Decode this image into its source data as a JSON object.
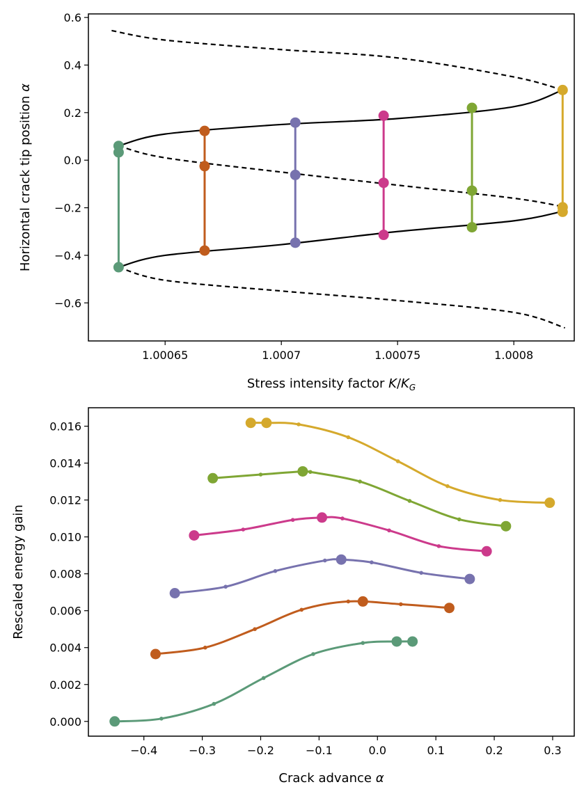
{
  "chart_data": [
    {
      "type": "line",
      "xlabel": "Stress intensity factor",
      "xlabel_math": "K/K_G",
      "ylabel": "Horizontal crack tip position",
      "ylabel_math": "α",
      "xlim": [
        1.000617,
        1.000826
      ],
      "ylim": [
        -0.76,
        0.615
      ],
      "xticks": [
        1.00065,
        1.0007,
        1.00075,
        1.0008
      ],
      "xtick_labels": [
        "1.00065",
        "1.0007",
        "1.00075",
        "1.0008"
      ],
      "yticks": [
        -0.6,
        -0.4,
        -0.2,
        0.0,
        0.2,
        0.4,
        0.6
      ],
      "ytick_labels": [
        "−0.6",
        "−0.4",
        "−0.2",
        "0.0",
        "0.2",
        "0.4",
        "0.6"
      ],
      "curves": [
        {
          "style": "dashed",
          "points": [
            [
              1.000627,
              0.545
            ],
            [
              1.00065,
              0.505
            ],
            [
              1.0007,
              0.465
            ],
            [
              1.00075,
              0.43
            ],
            [
              1.0008,
              0.35
            ],
            [
              1.000821,
              0.295
            ]
          ]
        },
        {
          "style": "solid",
          "points": [
            [
              1.000821,
              0.295
            ],
            [
              1.0008,
              0.225
            ],
            [
              1.00075,
              0.175
            ],
            [
              1.0007,
              0.15
            ],
            [
              1.00065,
              0.11
            ],
            [
              1.00063,
              0.06
            ]
          ]
        },
        {
          "style": "dashed",
          "points": [
            [
              1.00063,
              0.06
            ],
            [
              1.00065,
              0.01
            ],
            [
              1.0007,
              -0.05
            ],
            [
              1.00075,
              -0.105
            ],
            [
              1.0008,
              -0.16
            ],
            [
              1.000821,
              -0.195
            ]
          ]
        },
        {
          "style": "solid",
          "points": [
            [
              1.000821,
              -0.215
            ],
            [
              1.0008,
              -0.255
            ],
            [
              1.00075,
              -0.3
            ],
            [
              1.0007,
              -0.355
            ],
            [
              1.00065,
              -0.4
            ],
            [
              1.00063,
              -0.45
            ]
          ]
        },
        {
          "style": "dashed",
          "points": [
            [
              1.00063,
              -0.45
            ],
            [
              1.00065,
              -0.505
            ],
            [
              1.0007,
              -0.55
            ],
            [
              1.00075,
              -0.59
            ],
            [
              1.0008,
              -0.64
            ],
            [
              1.000822,
              -0.705
            ]
          ]
        }
      ],
      "series": [
        {
          "color": "#5b9a78",
          "x": 1.00063,
          "values": [
            0.06,
            0.033,
            -0.45
          ]
        },
        {
          "color": "#c05c1d",
          "x": 1.000667,
          "values": [
            0.123,
            -0.025,
            -0.38
          ]
        },
        {
          "color": "#7772ae",
          "x": 1.000706,
          "values": [
            0.158,
            -0.062,
            -0.347
          ]
        },
        {
          "color": "#cc3a8b",
          "x": 1.000744,
          "values": [
            0.187,
            -0.095,
            -0.314
          ]
        },
        {
          "color": "#7fa634",
          "x": 1.000782,
          "values": [
            0.22,
            -0.128,
            -0.282
          ]
        },
        {
          "color": "#d5a92c",
          "x": 1.000821,
          "values": [
            0.295,
            -0.198,
            -0.217
          ]
        }
      ]
    },
    {
      "type": "line",
      "xlabel": "Crack advance",
      "xlabel_math": "α",
      "ylabel": "Rescaled energy gain",
      "xlim": [
        -0.495,
        0.337
      ],
      "ylim": [
        -0.0008,
        0.017
      ],
      "xticks": [
        -0.4,
        -0.3,
        -0.2,
        -0.1,
        0.0,
        0.1,
        0.2,
        0.3
      ],
      "xtick_labels": [
        "−0.4",
        "−0.3",
        "−0.2",
        "−0.1",
        "0.0",
        "0.1",
        "0.2",
        "0.3"
      ],
      "yticks": [
        0.0,
        0.002,
        0.004,
        0.006,
        0.008,
        0.01,
        0.012,
        0.014,
        0.016
      ],
      "ytick_labels": [
        "0.000",
        "0.002",
        "0.004",
        "0.006",
        "0.008",
        "0.010",
        "0.012",
        "0.014",
        "0.016"
      ],
      "series": [
        {
          "color": "#5b9a78",
          "curve": [
            [
              -0.45,
              0.0
            ],
            [
              -0.37,
              0.00015
            ],
            [
              -0.28,
              0.00095
            ],
            [
              -0.195,
              0.00235
            ],
            [
              -0.11,
              0.00365
            ],
            [
              -0.025,
              0.00425
            ],
            [
              0.033,
              0.00433
            ],
            [
              0.06,
              0.00433
            ]
          ],
          "markers": [
            [
              -0.45,
              0.0
            ],
            [
              0.033,
              0.00433
            ],
            [
              0.06,
              0.00433
            ]
          ]
        },
        {
          "color": "#c05c1d",
          "curve": [
            [
              -0.38,
              0.00365
            ],
            [
              -0.295,
              0.004
            ],
            [
              -0.21,
              0.005
            ],
            [
              -0.13,
              0.00605
            ],
            [
              -0.05,
              0.0065
            ],
            [
              0.04,
              0.00635
            ],
            [
              0.123,
              0.00615
            ]
          ],
          "markers": [
            [
              -0.38,
              0.00365
            ],
            [
              -0.025,
              0.0065
            ],
            [
              0.123,
              0.00615
            ]
          ]
        },
        {
          "color": "#7772ae",
          "curve": [
            [
              -0.347,
              0.00695
            ],
            [
              -0.26,
              0.0073
            ],
            [
              -0.175,
              0.00815
            ],
            [
              -0.09,
              0.00872
            ],
            [
              -0.062,
              0.00877
            ],
            [
              -0.01,
              0.00862
            ],
            [
              0.075,
              0.00805
            ],
            [
              0.158,
              0.00772
            ]
          ],
          "markers": [
            [
              -0.347,
              0.00695
            ],
            [
              -0.062,
              0.00877
            ],
            [
              0.158,
              0.00772
            ]
          ]
        },
        {
          "color": "#cc3a8b",
          "curve": [
            [
              -0.314,
              0.01008
            ],
            [
              -0.23,
              0.0104
            ],
            [
              -0.145,
              0.01092
            ],
            [
              -0.095,
              0.01105
            ],
            [
              -0.06,
              0.011
            ],
            [
              0.02,
              0.01035
            ],
            [
              0.105,
              0.0095
            ],
            [
              0.187,
              0.00922
            ]
          ],
          "markers": [
            [
              -0.314,
              0.01008
            ],
            [
              -0.095,
              0.01105
            ],
            [
              0.187,
              0.00922
            ]
          ]
        },
        {
          "color": "#7fa634",
          "curve": [
            [
              -0.282,
              0.01318
            ],
            [
              -0.2,
              0.01338
            ],
            [
              -0.128,
              0.01355
            ],
            [
              -0.115,
              0.01352
            ],
            [
              -0.03,
              0.013
            ],
            [
              0.055,
              0.01195
            ],
            [
              0.14,
              0.01095
            ],
            [
              0.22,
              0.01058
            ]
          ],
          "markers": [
            [
              -0.282,
              0.01318
            ],
            [
              -0.128,
              0.01355
            ],
            [
              0.22,
              0.01058
            ]
          ]
        },
        {
          "color": "#d5a92c",
          "curve": [
            [
              -0.217,
              0.01618
            ],
            [
              -0.19,
              0.01618
            ],
            [
              -0.135,
              0.0161
            ],
            [
              -0.05,
              0.0154
            ],
            [
              0.035,
              0.0141
            ],
            [
              0.12,
              0.01275
            ],
            [
              0.21,
              0.012
            ],
            [
              0.295,
              0.01185
            ]
          ],
          "markers": [
            [
              -0.217,
              0.01618
            ],
            [
              -0.19,
              0.01618
            ],
            [
              0.295,
              0.01185
            ]
          ]
        }
      ]
    }
  ]
}
